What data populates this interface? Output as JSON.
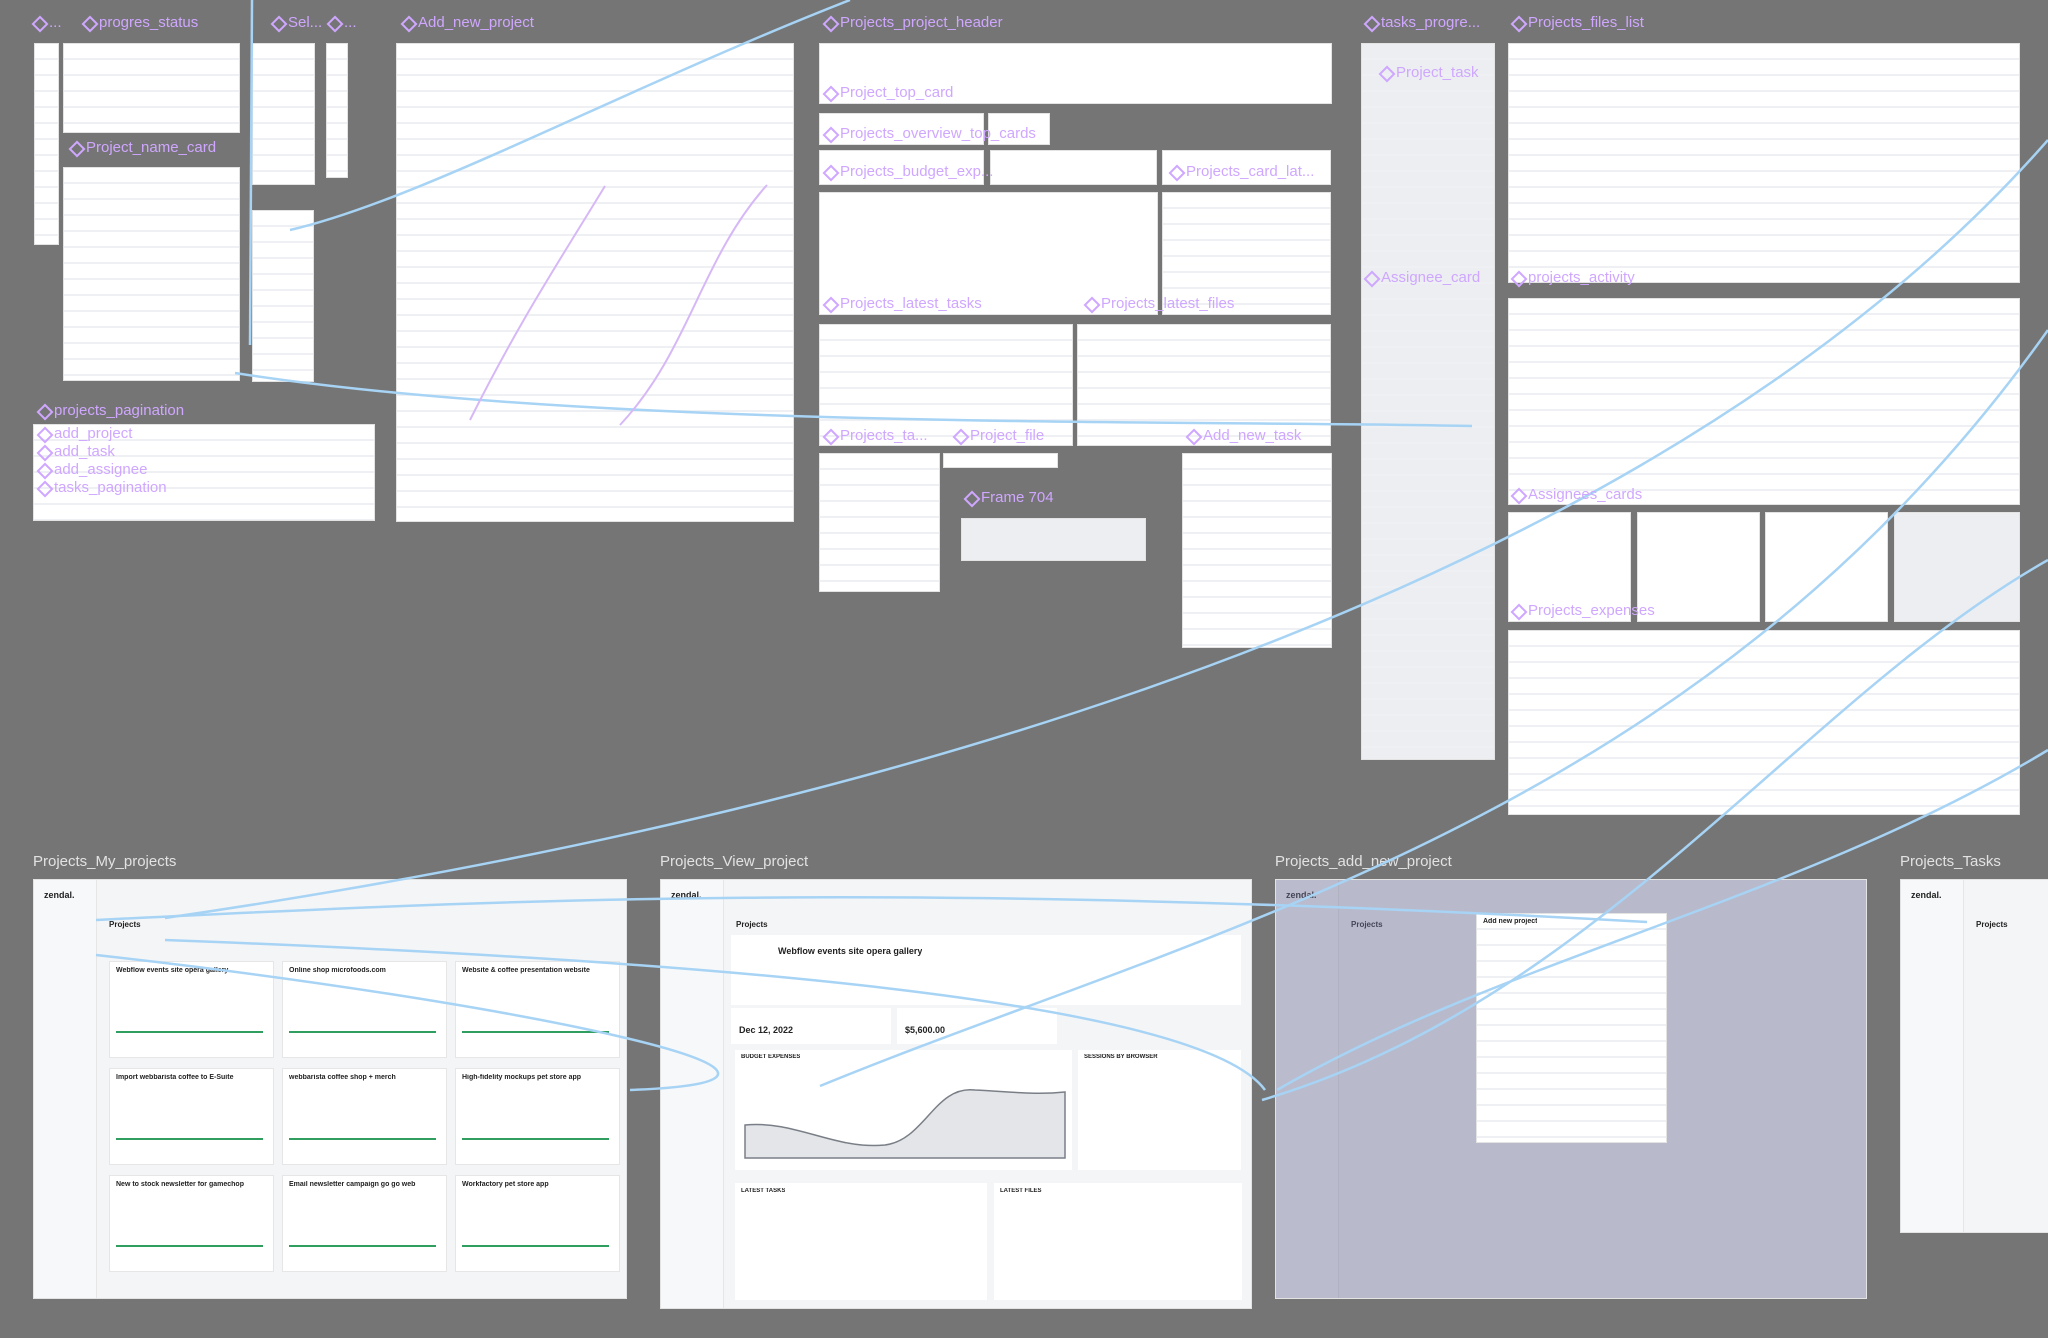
{
  "component_labels": [
    "...",
    "progres_status",
    "Sel...",
    "...",
    "Add_new_project",
    "Projects_project_header",
    "tasks_progre...",
    "Projects_files_list",
    "Project_top_card",
    "Project_task",
    "Projects_overview_top_cards",
    "Project_name_card",
    "Projects_budget_exp...",
    "Projects_card_lat...",
    "Projects_latest_tasks",
    "Projects_latest_files",
    "Assignee_card",
    "projects_activity",
    "projects_pagination",
    "add_project",
    "add_task",
    "add_assignee",
    "tasks_pagination",
    "Projects_ta...",
    "Project_file",
    "Add_new_task",
    "Frame 704",
    "Assignees_cards",
    "Projects_expenses"
  ],
  "frame_labels": [
    "Projects_My_projects",
    "Projects_View_project",
    "Projects_add_new_project",
    "Projects_Tasks"
  ],
  "my_projects": {
    "logo": "zendal.",
    "heading": "Projects",
    "cards": [
      "Webflow events site opera gallery",
      "Online shop microfoods.com",
      "Website & coffee presentation website",
      "Import webbarista coffee to E-Suite",
      "webbarista coffee shop + merch",
      "High-fidelity mockups pet store app",
      "New to stock newsletter for gamechop",
      "Email newsletter campaign go go web",
      "Workfactory pet store app"
    ]
  },
  "view_project": {
    "logo": "zendal.",
    "heading": "Projects",
    "title": "Webflow events site opera gallery",
    "date": "Dec 12, 2022",
    "budget": "$5,600.00",
    "budget_expenses": "BUDGET EXPENSES",
    "sessions": "SESSIONS BY BROWSER",
    "latest_tasks": "LATEST TASKS",
    "latest_files": "LATEST FILES"
  },
  "add_new_project": {
    "logo": "zendal.",
    "heading": "Projects",
    "modal_title": "Add new project"
  },
  "tasks": {
    "logo": "zendal.",
    "heading": "Projects"
  }
}
